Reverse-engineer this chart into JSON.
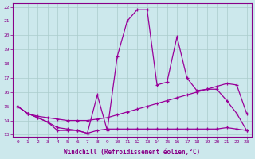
{
  "xlabel": "Windchill (Refroidissement éolien,°C)",
  "background_color": "#cce8ec",
  "grid_color": "#aacccc",
  "line_color": "#990099",
  "xlim_min": -0.5,
  "xlim_max": 23.5,
  "ylim_min": 12.85,
  "ylim_max": 22.25,
  "yticks": [
    13,
    14,
    15,
    16,
    17,
    18,
    19,
    20,
    21,
    22
  ],
  "xticks": [
    0,
    1,
    2,
    3,
    4,
    5,
    6,
    7,
    8,
    9,
    10,
    11,
    12,
    13,
    14,
    15,
    16,
    17,
    18,
    19,
    20,
    21,
    22,
    23
  ],
  "line1_x": [
    0,
    1,
    2,
    3,
    4,
    5,
    6,
    7,
    8,
    9,
    10,
    11,
    12,
    13,
    14,
    15,
    16,
    17,
    18,
    19,
    20,
    21,
    22,
    23
  ],
  "line1_y": [
    15.0,
    14.5,
    14.2,
    13.9,
    13.3,
    13.3,
    13.3,
    13.1,
    15.8,
    13.3,
    18.5,
    21.0,
    21.8,
    21.8,
    16.5,
    16.7,
    19.9,
    17.0,
    16.1,
    16.2,
    16.2,
    15.4,
    14.5,
    13.3
  ],
  "line2_x": [
    0,
    1,
    2,
    3,
    4,
    5,
    6,
    7,
    8,
    9,
    10,
    11,
    12,
    13,
    14,
    15,
    16,
    17,
    18,
    19,
    20,
    21,
    22,
    23
  ],
  "line2_y": [
    15.0,
    14.5,
    14.3,
    14.2,
    14.1,
    14.0,
    14.0,
    14.0,
    14.1,
    14.2,
    14.4,
    14.6,
    14.8,
    15.0,
    15.2,
    15.4,
    15.6,
    15.8,
    16.0,
    16.2,
    16.4,
    16.6,
    16.5,
    14.5
  ],
  "line3_x": [
    0,
    1,
    2,
    3,
    4,
    5,
    6,
    7,
    8,
    9,
    10,
    11,
    12,
    13,
    14,
    15,
    16,
    17,
    18,
    19,
    20,
    21,
    22,
    23
  ],
  "line3_y": [
    15.0,
    14.5,
    14.2,
    13.9,
    13.5,
    13.4,
    13.3,
    13.1,
    13.3,
    13.4,
    13.4,
    13.4,
    13.4,
    13.4,
    13.4,
    13.4,
    13.4,
    13.4,
    13.4,
    13.4,
    13.4,
    13.5,
    13.4,
    13.3
  ]
}
